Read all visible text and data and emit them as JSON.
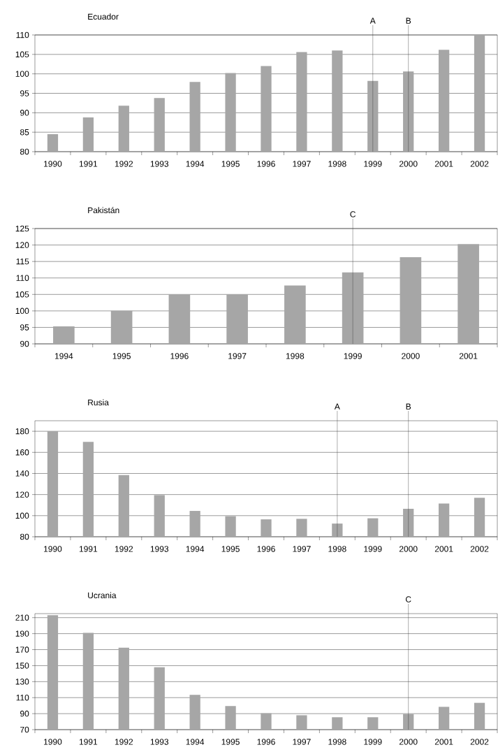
{
  "chart_data": [
    {
      "type": "bar",
      "title": "Ecuador",
      "categories": [
        "1990",
        "1991",
        "1992",
        "1993",
        "1994",
        "1995",
        "1996",
        "1997",
        "1998",
        "1999",
        "2000",
        "2001",
        "2002"
      ],
      "values": [
        84.5,
        88.8,
        91.8,
        93.8,
        97.9,
        100.2,
        102.0,
        105.6,
        106.0,
        98.2,
        100.6,
        106.2,
        110
      ],
      "color": "#a6a6a6",
      "ylim": [
        80,
        110
      ],
      "yticks": [
        80,
        85,
        90,
        95,
        100,
        105,
        110
      ],
      "grid": "y",
      "ref_lines": [
        {
          "axis": "x",
          "value": "1999",
          "label": "A"
        },
        {
          "axis": "x",
          "value": "2000",
          "label": "B"
        }
      ]
    },
    {
      "type": "bar",
      "title": "Pakistán",
      "categories": [
        "1994",
        "1995",
        "1996",
        "1997",
        "1998",
        "1999",
        "2000",
        "2001"
      ],
      "values": [
        95.3,
        100,
        105,
        105,
        107.7,
        111.7,
        116.3,
        120.3
      ],
      "color": "#a6a6a6",
      "ylim": [
        90,
        125
      ],
      "yticks": [
        90,
        95,
        100,
        105,
        110,
        115,
        120,
        125
      ],
      "grid": "y",
      "ref_lines": [
        {
          "axis": "x",
          "value": "1999",
          "label": "C"
        }
      ]
    },
    {
      "type": "bar",
      "title": "Rusia",
      "categories": [
        "1990",
        "1991",
        "1992",
        "1993",
        "1994",
        "1995",
        "1996",
        "1997",
        "1998",
        "1999",
        "2000",
        "2001",
        "2002"
      ],
      "values": [
        180,
        170,
        138.5,
        119.5,
        104.5,
        99.5,
        96.5,
        97,
        92.5,
        97.5,
        106.5,
        111.5,
        117
      ],
      "color": "#a6a6a6",
      "ylim": [
        80,
        190
      ],
      "yticks": [
        80,
        100,
        120,
        140,
        160,
        180
      ],
      "grid": "y",
      "ref_lines": [
        {
          "axis": "x",
          "value": "1998",
          "label": "A"
        },
        {
          "axis": "x",
          "value": "2000",
          "label": "B"
        }
      ]
    },
    {
      "type": "bar",
      "title": "Ucrania",
      "categories": [
        "1990",
        "1991",
        "1992",
        "1993",
        "1994",
        "1995",
        "1996",
        "1997",
        "1998",
        "1999",
        "2000",
        "2001",
        "2002"
      ],
      "values": [
        213,
        191,
        172.5,
        148,
        113.5,
        99.5,
        90.5,
        88,
        85.5,
        85.5,
        89.5,
        98.5,
        103.5
      ],
      "color": "#a6a6a6",
      "ylim": [
        70,
        215
      ],
      "yticks": [
        70,
        90,
        110,
        130,
        150,
        170,
        190,
        210
      ],
      "grid": "y",
      "ref_lines": [
        {
          "axis": "x",
          "value": "2000",
          "label": "C"
        }
      ]
    }
  ]
}
